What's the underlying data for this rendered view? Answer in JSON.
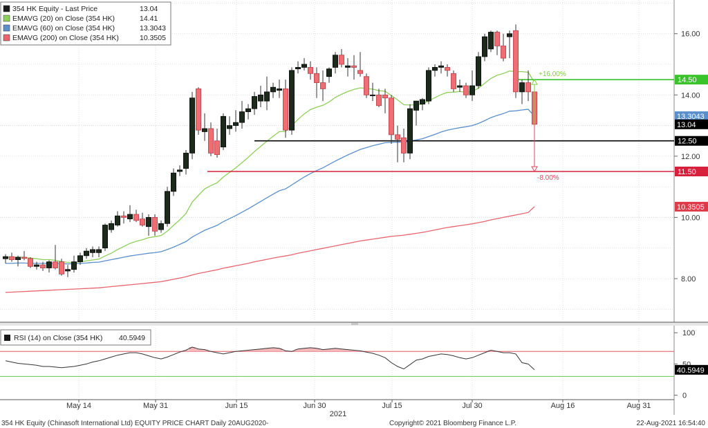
{
  "footer": {
    "left": "354 HK Equity (Chinasoft International Ltd) EQUITY PRICE CHART  Daily 20AUG2020-",
    "center": "Copyright© 2021 Bloomberg Finance L.P.",
    "right": "22-Aug-2021 16:54:40"
  },
  "legend": [
    {
      "label": "354 HK Equity  - Last Price",
      "value": "13.04",
      "color": "#1a1a1a"
    },
    {
      "label": "EMAVG (20)  on Close (354 HK)",
      "value": "14.41",
      "color": "#8ed05a"
    },
    {
      "label": "EMAVG (60)  on Close (354 HK)",
      "value": "13.3043",
      "color": "#5a8fcc"
    },
    {
      "label": "EMAVG (200)  on Close (354 HK)",
      "value": "10.3505",
      "color": "#e8646e"
    }
  ],
  "rsi_legend": {
    "label": "RSI (14)  on Close (354 HK)",
    "value": "40.5949",
    "color": "#1a1a1a"
  },
  "chart_data": [
    {
      "type": "candlestick",
      "title": "",
      "xlabel": "2021",
      "x_ticks": [
        "May 14",
        "May 31",
        "Jun 15",
        "Jun 30",
        "Jul 15",
        "Jul 30",
        "Aug 16",
        "Aug 31"
      ],
      "y_ticks": [
        "8.00",
        "10.00",
        "12.00",
        "14.00",
        "16.00"
      ],
      "ylim": [
        6.6,
        17.1
      ],
      "grid": true,
      "candles": [
        {
          "o": 8.65,
          "h": 8.8,
          "l": 8.5,
          "c": 8.72
        },
        {
          "o": 8.72,
          "h": 8.85,
          "l": 8.55,
          "c": 8.62
        },
        {
          "o": 8.62,
          "h": 8.75,
          "l": 8.4,
          "c": 8.7
        },
        {
          "o": 8.7,
          "h": 8.9,
          "l": 8.6,
          "c": 8.66
        },
        {
          "o": 8.66,
          "h": 8.7,
          "l": 8.35,
          "c": 8.4
        },
        {
          "o": 8.4,
          "h": 8.55,
          "l": 8.3,
          "c": 8.45
        },
        {
          "o": 8.45,
          "h": 8.55,
          "l": 8.25,
          "c": 8.35
        },
        {
          "o": 8.35,
          "h": 8.6,
          "l": 8.2,
          "c": 8.55
        },
        {
          "o": 8.55,
          "h": 9.1,
          "l": 8.3,
          "c": 8.35
        },
        {
          "o": 8.55,
          "h": 8.65,
          "l": 8.1,
          "c": 8.15
        },
        {
          "o": 8.25,
          "h": 8.45,
          "l": 8.05,
          "c": 8.3
        },
        {
          "o": 8.3,
          "h": 8.75,
          "l": 8.2,
          "c": 8.55
        },
        {
          "o": 8.55,
          "h": 8.85,
          "l": 8.45,
          "c": 8.75
        },
        {
          "o": 8.75,
          "h": 9.0,
          "l": 8.65,
          "c": 8.9
        },
        {
          "o": 8.85,
          "h": 9.05,
          "l": 8.7,
          "c": 8.95
        },
        {
          "o": 8.85,
          "h": 9.05,
          "l": 8.7,
          "c": 8.95
        },
        {
          "o": 9.0,
          "h": 9.8,
          "l": 8.9,
          "c": 9.75
        },
        {
          "o": 9.6,
          "h": 9.9,
          "l": 9.5,
          "c": 9.8
        },
        {
          "o": 9.75,
          "h": 10.2,
          "l": 9.7,
          "c": 10.05
        },
        {
          "o": 10.05,
          "h": 10.2,
          "l": 9.8,
          "c": 10.0
        },
        {
          "o": 9.95,
          "h": 10.4,
          "l": 9.85,
          "c": 10.1
        },
        {
          "o": 10.1,
          "h": 10.25,
          "l": 9.85,
          "c": 9.9
        },
        {
          "o": 9.95,
          "h": 10.15,
          "l": 9.7,
          "c": 9.75
        },
        {
          "o": 9.7,
          "h": 10.1,
          "l": 9.4,
          "c": 10.0
        },
        {
          "o": 10.0,
          "h": 10.1,
          "l": 9.4,
          "c": 9.55
        },
        {
          "o": 9.6,
          "h": 9.9,
          "l": 9.5,
          "c": 9.8
        },
        {
          "o": 9.8,
          "h": 11.0,
          "l": 9.7,
          "c": 10.85
        },
        {
          "o": 10.85,
          "h": 11.6,
          "l": 10.7,
          "c": 11.45
        },
        {
          "o": 11.5,
          "h": 11.7,
          "l": 11.35,
          "c": 11.55
        },
        {
          "o": 11.6,
          "h": 12.2,
          "l": 11.4,
          "c": 12.1
        },
        {
          "o": 12.1,
          "h": 14.1,
          "l": 11.9,
          "c": 13.9
        },
        {
          "o": 14.2,
          "h": 14.25,
          "l": 12.7,
          "c": 12.85
        },
        {
          "o": 12.8,
          "h": 13.4,
          "l": 12.5,
          "c": 12.9
        },
        {
          "o": 12.9,
          "h": 13.1,
          "l": 12.0,
          "c": 12.1
        },
        {
          "o": 12.5,
          "h": 12.9,
          "l": 11.95,
          "c": 12.05
        },
        {
          "o": 12.3,
          "h": 13.4,
          "l": 12.2,
          "c": 13.3
        },
        {
          "o": 12.9,
          "h": 13.3,
          "l": 12.7,
          "c": 13.0
        },
        {
          "o": 13.0,
          "h": 13.5,
          "l": 12.8,
          "c": 13.1
        },
        {
          "o": 13.1,
          "h": 13.8,
          "l": 12.9,
          "c": 13.45
        },
        {
          "o": 13.45,
          "h": 13.7,
          "l": 13.2,
          "c": 13.55
        },
        {
          "o": 13.55,
          "h": 14.1,
          "l": 13.35,
          "c": 13.95
        },
        {
          "o": 13.8,
          "h": 14.3,
          "l": 13.6,
          "c": 14.0
        },
        {
          "o": 13.8,
          "h": 14.6,
          "l": 13.5,
          "c": 14.1
        },
        {
          "o": 14.1,
          "h": 14.4,
          "l": 13.9,
          "c": 14.25
        },
        {
          "o": 14.15,
          "h": 14.5,
          "l": 13.9,
          "c": 14.2
        },
        {
          "o": 14.2,
          "h": 14.5,
          "l": 12.6,
          "c": 12.85
        },
        {
          "o": 12.85,
          "h": 14.9,
          "l": 12.7,
          "c": 14.8
        },
        {
          "o": 14.85,
          "h": 15.1,
          "l": 14.7,
          "c": 14.9
        },
        {
          "o": 14.9,
          "h": 15.2,
          "l": 14.8,
          "c": 15.0
        },
        {
          "o": 14.9,
          "h": 15.1,
          "l": 14.5,
          "c": 14.7
        },
        {
          "o": 14.7,
          "h": 14.9,
          "l": 13.9,
          "c": 14.4
        },
        {
          "o": 14.4,
          "h": 14.8,
          "l": 13.8,
          "c": 14.2
        },
        {
          "o": 14.6,
          "h": 14.9,
          "l": 14.4,
          "c": 14.85
        },
        {
          "o": 14.9,
          "h": 15.4,
          "l": 14.7,
          "c": 15.3
        },
        {
          "o": 15.3,
          "h": 15.5,
          "l": 14.9,
          "c": 15.0
        },
        {
          "o": 14.9,
          "h": 15.2,
          "l": 14.6,
          "c": 14.95
        },
        {
          "o": 14.95,
          "h": 15.3,
          "l": 14.5,
          "c": 14.9
        },
        {
          "o": 14.8,
          "h": 15.4,
          "l": 14.6,
          "c": 14.7
        },
        {
          "o": 14.6,
          "h": 14.7,
          "l": 13.9,
          "c": 14.0
        },
        {
          "o": 14.0,
          "h": 14.4,
          "l": 13.8,
          "c": 14.0
        },
        {
          "o": 14.0,
          "h": 14.2,
          "l": 13.6,
          "c": 13.65
        },
        {
          "o": 14.0,
          "h": 14.2,
          "l": 13.4,
          "c": 13.9
        },
        {
          "o": 13.9,
          "h": 14.0,
          "l": 12.4,
          "c": 12.7
        },
        {
          "o": 12.7,
          "h": 13.0,
          "l": 11.8,
          "c": 12.55
        },
        {
          "o": 12.6,
          "h": 12.9,
          "l": 11.8,
          "c": 12.1
        },
        {
          "o": 12.1,
          "h": 13.7,
          "l": 11.9,
          "c": 13.55
        },
        {
          "o": 13.5,
          "h": 13.8,
          "l": 13.0,
          "c": 13.8
        },
        {
          "o": 13.7,
          "h": 13.9,
          "l": 13.5,
          "c": 13.85
        },
        {
          "o": 13.8,
          "h": 14.9,
          "l": 13.7,
          "c": 14.8
        },
        {
          "o": 14.8,
          "h": 15.0,
          "l": 14.6,
          "c": 14.9
        },
        {
          "o": 14.9,
          "h": 15.1,
          "l": 14.7,
          "c": 14.95
        },
        {
          "o": 14.9,
          "h": 15.0,
          "l": 14.6,
          "c": 14.8
        },
        {
          "o": 14.7,
          "h": 14.8,
          "l": 14.1,
          "c": 14.2
        },
        {
          "o": 14.25,
          "h": 14.5,
          "l": 14.1,
          "c": 14.3
        },
        {
          "o": 14.3,
          "h": 14.4,
          "l": 13.9,
          "c": 14.0
        },
        {
          "o": 14.0,
          "h": 14.8,
          "l": 13.8,
          "c": 14.3
        },
        {
          "o": 14.3,
          "h": 15.4,
          "l": 14.2,
          "c": 15.25
        },
        {
          "o": 15.25,
          "h": 16.0,
          "l": 15.1,
          "c": 15.9
        },
        {
          "o": 15.5,
          "h": 16.1,
          "l": 15.4,
          "c": 16.05
        },
        {
          "o": 16.05,
          "h": 16.1,
          "l": 15.3,
          "c": 15.6
        },
        {
          "o": 15.6,
          "h": 16.0,
          "l": 15.1,
          "c": 15.2
        },
        {
          "o": 15.9,
          "h": 16.1,
          "l": 15.2,
          "c": 16.0
        },
        {
          "o": 16.1,
          "h": 16.3,
          "l": 13.9,
          "c": 14.1
        },
        {
          "o": 14.1,
          "h": 14.5,
          "l": 13.7,
          "c": 14.4
        },
        {
          "o": 14.4,
          "h": 14.8,
          "l": 13.8,
          "c": 14.1
        },
        {
          "o": 14.1,
          "h": 14.3,
          "l": 13.0,
          "c": 13.04
        }
      ],
      "series": [
        {
          "name": "EMAVG (20)  on Close (354 HK)",
          "color": "#8ed05a",
          "values": [
            8.7,
            8.7,
            8.7,
            8.7,
            8.67,
            8.65,
            8.62,
            8.62,
            8.6,
            8.56,
            8.53,
            8.53,
            8.55,
            8.58,
            8.61,
            8.64,
            8.74,
            8.83,
            8.95,
            9.05,
            9.15,
            9.22,
            9.27,
            9.34,
            9.37,
            9.41,
            9.55,
            9.74,
            9.92,
            10.13,
            10.5,
            10.72,
            10.93,
            11.04,
            11.13,
            11.32,
            11.47,
            11.62,
            11.79,
            11.96,
            12.15,
            12.32,
            12.49,
            12.65,
            12.8,
            12.81,
            13.0,
            13.2,
            13.38,
            13.52,
            13.6,
            13.66,
            13.77,
            13.92,
            14.02,
            14.11,
            14.18,
            14.23,
            14.21,
            14.19,
            14.14,
            14.12,
            13.98,
            13.84,
            13.68,
            13.67,
            13.68,
            13.7,
            13.81,
            13.91,
            14.01,
            14.08,
            14.09,
            14.11,
            14.09,
            14.11,
            14.22,
            14.38,
            14.54,
            14.64,
            14.7,
            14.78,
            14.76,
            14.76,
            14.74,
            14.41
          ]
        },
        {
          "name": "EMAVG (60)  on Close (354 HK)",
          "color": "#5a8fcc",
          "values": [
            8.5,
            8.5,
            8.51,
            8.51,
            8.5,
            8.5,
            8.5,
            8.5,
            8.5,
            8.49,
            8.48,
            8.49,
            8.5,
            8.51,
            8.53,
            8.54,
            8.58,
            8.62,
            8.66,
            8.7,
            8.74,
            8.77,
            8.8,
            8.83,
            8.85,
            8.88,
            8.95,
            9.03,
            9.12,
            9.21,
            9.36,
            9.47,
            9.58,
            9.66,
            9.74,
            9.86,
            9.96,
            10.06,
            10.17,
            10.28,
            10.4,
            10.52,
            10.64,
            10.76,
            10.87,
            10.93,
            11.06,
            11.19,
            11.32,
            11.43,
            11.53,
            11.62,
            11.73,
            11.84,
            11.94,
            12.04,
            12.13,
            12.22,
            12.28,
            12.34,
            12.39,
            12.44,
            12.45,
            12.46,
            12.45,
            12.49,
            12.53,
            12.57,
            12.64,
            12.71,
            12.79,
            12.85,
            12.89,
            12.93,
            12.96,
            13.0,
            13.07,
            13.16,
            13.26,
            13.33,
            13.39,
            13.47,
            13.48,
            13.51,
            13.53,
            13.3043
          ]
        },
        {
          "name": "EMAVG (200)  on Close (354 HK)",
          "color": "#e8646e",
          "values": [
            7.55,
            7.56,
            7.57,
            7.58,
            7.59,
            7.6,
            7.61,
            7.62,
            7.63,
            7.64,
            7.65,
            7.66,
            7.67,
            7.68,
            7.69,
            7.7,
            7.72,
            7.74,
            7.76,
            7.78,
            7.8,
            7.82,
            7.84,
            7.86,
            7.88,
            7.9,
            7.94,
            7.98,
            8.02,
            8.06,
            8.12,
            8.17,
            8.21,
            8.25,
            8.29,
            8.34,
            8.38,
            8.42,
            8.46,
            8.5,
            8.55,
            8.59,
            8.63,
            8.67,
            8.71,
            8.74,
            8.78,
            8.83,
            8.87,
            8.91,
            8.95,
            8.99,
            9.03,
            9.07,
            9.11,
            9.15,
            9.19,
            9.23,
            9.26,
            9.29,
            9.32,
            9.35,
            9.38,
            9.4,
            9.42,
            9.45,
            9.48,
            9.51,
            9.55,
            9.59,
            9.63,
            9.67,
            9.7,
            9.73,
            9.76,
            9.79,
            9.83,
            9.87,
            9.92,
            9.96,
            10.0,
            10.04,
            10.08,
            10.12,
            10.16,
            10.3505
          ]
        }
      ],
      "horizontal_lines": [
        {
          "value": 14.5,
          "label": "14.50",
          "color": "#39c42b"
        },
        {
          "value": 12.5,
          "label": "12.50",
          "color": "#000000"
        },
        {
          "value": 11.5,
          "label": "11.50",
          "color": "#d6203c"
        }
      ],
      "annotations": [
        {
          "text": "+16.00%",
          "color": "#7bd03c",
          "from": 13.04,
          "to": 14.5
        },
        {
          "text": "-8.00%",
          "color": "#e8435f",
          "from": 13.04,
          "to": 11.5
        }
      ],
      "price_tags": [
        {
          "text": "13.3043",
          "value": 13.3043,
          "color": "#5a8fcc"
        },
        {
          "text": "13.04",
          "value": 13.04,
          "color": "#000000"
        },
        {
          "text": "10.3505",
          "value": 10.3505,
          "color": "#e03a48"
        }
      ]
    },
    {
      "type": "line",
      "title": "",
      "y_ticks": [
        "0",
        "50",
        "100"
      ],
      "ylim": [
        -5,
        108
      ],
      "reference_lines": [
        {
          "value": 70,
          "color": "#e2535e"
        },
        {
          "value": 30,
          "color": "#5ec84a"
        }
      ],
      "series": [
        {
          "name": "RSI (14)  on Close (354 HK)",
          "color": "#333333",
          "values": [
            55,
            53,
            51,
            50,
            49,
            48,
            46,
            46,
            45,
            44,
            45,
            46,
            48,
            50,
            53,
            55,
            58,
            61,
            64,
            66,
            68,
            68,
            66,
            63,
            60,
            58,
            61,
            65,
            69,
            72,
            77,
            74,
            73,
            70,
            68,
            66,
            68,
            70,
            71,
            72,
            73,
            74,
            75,
            76,
            75,
            71,
            70,
            74,
            75,
            76,
            75,
            73,
            74,
            75,
            74,
            73,
            72,
            71,
            69,
            67,
            64,
            60,
            52,
            46,
            42,
            49,
            56,
            58,
            62,
            64,
            66,
            65,
            63,
            60,
            58,
            60,
            64,
            68,
            72,
            70,
            68,
            68,
            66,
            52,
            50,
            40.59
          ]
        }
      ],
      "price_tags": [
        {
          "text": "40.5949",
          "value": 40.5949,
          "color": "#000000"
        }
      ]
    }
  ]
}
